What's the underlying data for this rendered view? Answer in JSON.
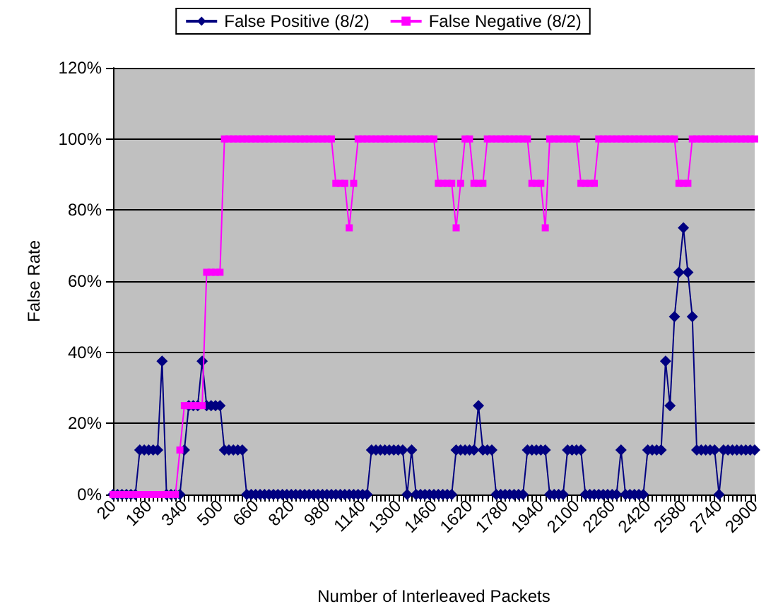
{
  "chart_data": {
    "type": "line",
    "xlabel": "Number of Interleaved Packets",
    "ylabel": "False Rate",
    "categories": [
      "20",
      null,
      null,
      null,
      null,
      null,
      null,
      null,
      "180",
      null,
      null,
      null,
      null,
      null,
      null,
      null,
      "340",
      null,
      null,
      null,
      null,
      null,
      null,
      null,
      "500",
      null,
      null,
      null,
      null,
      null,
      null,
      null,
      "660",
      null,
      null,
      null,
      null,
      null,
      null,
      null,
      "820",
      null,
      null,
      null,
      null,
      null,
      null,
      null,
      "980",
      null,
      null,
      null,
      null,
      null,
      null,
      null,
      "1140",
      null,
      null,
      null,
      null,
      null,
      null,
      null,
      "1300",
      null,
      null,
      null,
      null,
      null,
      null,
      null,
      "1460",
      null,
      null,
      null,
      null,
      null,
      null,
      null,
      "1620",
      null,
      null,
      null,
      null,
      null,
      null,
      null,
      "1780",
      null,
      null,
      null,
      null,
      null,
      null,
      null,
      "1940",
      null,
      null,
      null,
      null,
      null,
      null,
      null,
      "2100",
      null,
      null,
      null,
      null,
      null,
      null,
      null,
      "2260",
      null,
      null,
      null,
      null,
      null,
      null,
      null,
      "2420",
      null,
      null,
      null,
      null,
      null,
      null,
      null,
      "2580",
      null,
      null,
      null,
      null,
      null,
      null,
      null,
      "2740",
      null,
      null,
      null,
      null,
      null,
      null,
      null,
      "2900"
    ],
    "series": [
      {
        "name": "False Positive (8/2)",
        "color": "#000080",
        "marker": "diamond",
        "values": [
          0,
          0,
          0,
          0,
          0,
          0,
          12.5,
          12.5,
          12.5,
          12.5,
          12.5,
          37.5,
          0,
          0,
          0,
          0,
          12.5,
          25,
          25,
          25,
          37.5,
          25,
          25,
          25,
          25,
          12.5,
          12.5,
          12.5,
          12.5,
          12.5,
          0,
          0,
          0,
          0,
          0,
          0,
          0,
          0,
          0,
          0,
          0,
          0,
          0,
          0,
          0,
          0,
          0,
          0,
          0,
          0,
          0,
          0,
          0,
          0,
          0,
          0,
          0,
          0,
          12.5,
          12.5,
          12.5,
          12.5,
          12.5,
          12.5,
          12.5,
          12.5,
          0,
          12.5,
          0,
          0,
          0,
          0,
          0,
          0,
          0,
          0,
          0,
          12.5,
          12.5,
          12.5,
          12.5,
          12.5,
          25,
          12.5,
          12.5,
          12.5,
          0,
          0,
          0,
          0,
          0,
          0,
          0,
          12.5,
          12.5,
          12.5,
          12.5,
          12.5,
          0,
          0,
          0,
          0,
          12.5,
          12.5,
          12.5,
          12.5,
          0,
          0,
          0,
          0,
          0,
          0,
          0,
          0,
          12.5,
          0,
          0,
          0,
          0,
          0,
          12.5,
          12.5,
          12.5,
          12.5,
          37.5,
          25,
          50,
          62.5,
          75,
          62.5,
          50,
          12.5,
          12.5,
          12.5,
          12.5,
          12.5,
          0,
          12.5,
          12.5,
          12.5,
          12.5,
          12.5,
          12.5,
          12.5,
          12.5
        ]
      },
      {
        "name": "False Negative (8/2)",
        "color": "#ff00ff",
        "marker": "square",
        "values": [
          0,
          0,
          0,
          0,
          0,
          0,
          0,
          0,
          0,
          0,
          0,
          0,
          0,
          0,
          0,
          12.5,
          25,
          25,
          25,
          25,
          25,
          62.5,
          62.5,
          62.5,
          62.5,
          100,
          100,
          100,
          100,
          100,
          100,
          100,
          100,
          100,
          100,
          100,
          100,
          100,
          100,
          100,
          100,
          100,
          100,
          100,
          100,
          100,
          100,
          100,
          100,
          100,
          87.5,
          87.5,
          87.5,
          75,
          87.5,
          100,
          100,
          100,
          100,
          100,
          100,
          100,
          100,
          100,
          100,
          100,
          100,
          100,
          100,
          100,
          100,
          100,
          100,
          87.5,
          87.5,
          87.5,
          87.5,
          75,
          87.5,
          100,
          100,
          87.5,
          87.5,
          87.5,
          100,
          100,
          100,
          100,
          100,
          100,
          100,
          100,
          100,
          100,
          87.5,
          87.5,
          87.5,
          75,
          100,
          100,
          100,
          100,
          100,
          100,
          100,
          87.5,
          87.5,
          87.5,
          87.5,
          100,
          100,
          100,
          100,
          100,
          100,
          100,
          100,
          100,
          100,
          100,
          100,
          100,
          100,
          100,
          100,
          100,
          100,
          87.5,
          87.5,
          87.5,
          100,
          100,
          100,
          100,
          100,
          100,
          100,
          100,
          100,
          100,
          100,
          100,
          100,
          100,
          100
        ]
      }
    ],
    "ylim": [
      0,
      120
    ],
    "yticks": [
      {
        "value": 0,
        "label": "0%"
      },
      {
        "value": 20,
        "label": "20%"
      },
      {
        "value": 40,
        "label": "40%"
      },
      {
        "value": 60,
        "label": "60%"
      },
      {
        "value": 80,
        "label": "80%"
      },
      {
        "value": 100,
        "label": "100%"
      },
      {
        "value": 120,
        "label": "120%"
      }
    ],
    "grid": "y",
    "legend": "top",
    "line_style": "solid"
  }
}
